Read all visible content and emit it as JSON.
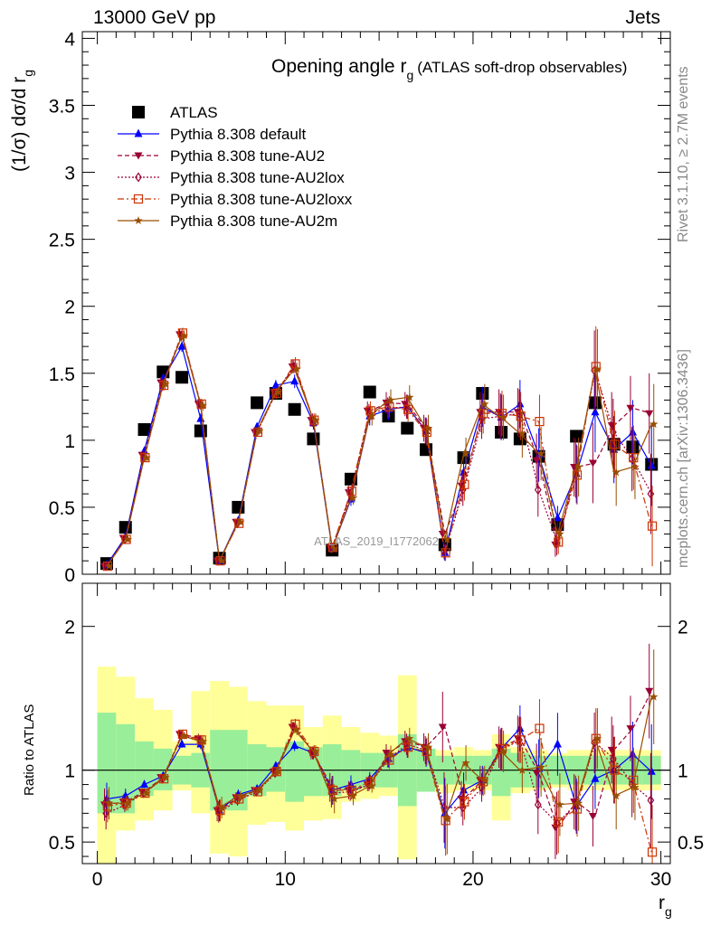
{
  "header": {
    "left": "13000 GeV pp",
    "right": "Jets"
  },
  "side": {
    "rivet": "Rivet 3.1.10, ≥ 2.7M events",
    "mcplots": "mcplots.cern.ch [arXiv:1306.3436]"
  },
  "watermark": "ATLAS_2019_I1772062",
  "chart_data": [
    {
      "type": "line",
      "title": "Opening angle r",
      "title_sub": "g",
      "title_suffix": "(ATLAS soft-drop observables)",
      "ylabel": "(1/σ) dσ/d r",
      "ylabel_sub": "g",
      "xlim": [
        -0.8,
        30.5
      ],
      "ylim": [
        0,
        4.05
      ],
      "y_ticks": [
        "0",
        "0.5",
        "1",
        "1.5",
        "2",
        "2.5",
        "3",
        "3.5",
        "4"
      ],
      "legend_position": "top-left",
      "x": [
        0.5,
        1.5,
        2.5,
        3.5,
        4.5,
        5.5,
        6.5,
        7.5,
        8.5,
        9.5,
        10.5,
        11.5,
        12.5,
        13.5,
        14.5,
        15.5,
        16.5,
        17.5,
        18.5,
        19.5,
        20.5,
        21.5,
        22.5,
        23.5,
        24.5,
        25.5,
        26.5,
        27.5,
        28.5,
        29.5
      ],
      "series": [
        {
          "name": "ATLAS",
          "color": "#000000",
          "marker": "square",
          "line": "none",
          "values": [
            0.08,
            0.35,
            1.08,
            1.51,
            1.47,
            1.07,
            0.12,
            0.5,
            1.28,
            1.35,
            1.23,
            1.01,
            0.18,
            0.71,
            1.36,
            1.18,
            1.09,
            0.93,
            0.22,
            0.87,
            1.35,
            1.06,
            1.01,
            0.88,
            0.37,
            1.03,
            1.28,
            0.97,
            0.95,
            0.82
          ]
        },
        {
          "name": "Pythia 8.308 default",
          "color": "#0000ff",
          "marker": "triangle-up",
          "line": "solid",
          "values": [
            0.07,
            0.28,
            0.92,
            1.46,
            1.7,
            1.16,
            0.1,
            0.4,
            1.1,
            1.41,
            1.44,
            1.13,
            0.19,
            0.56,
            1.18,
            1.23,
            1.25,
            1.07,
            0.16,
            0.76,
            1.25,
            1.17,
            1.27,
            0.89,
            0.42,
            0.75,
            1.21,
            0.93,
            1.06,
            0.81
          ]
        },
        {
          "name": "Pythia 8.308 tune-AU2",
          "color": "#990033",
          "marker": "triangle-down",
          "line": "dashed",
          "values": [
            0.06,
            0.27,
            0.89,
            1.43,
            1.79,
            1.27,
            0.1,
            0.39,
            1.06,
            1.36,
            1.55,
            1.15,
            0.2,
            0.61,
            1.22,
            1.28,
            1.27,
            1.09,
            0.3,
            0.66,
            1.21,
            1.21,
            1.21,
            0.85,
            0.22,
            0.8,
            0.83,
            1.11,
            1.24,
            1.2
          ]
        },
        {
          "name": "Pythia 8.308 tune-AU2lox",
          "color": "#990033",
          "marker": "diamond-open",
          "line": "dotted",
          "values": [
            0.06,
            0.26,
            0.87,
            1.41,
            1.78,
            1.27,
            0.1,
            0.38,
            1.06,
            1.35,
            1.55,
            1.15,
            0.19,
            0.6,
            1.2,
            1.24,
            1.25,
            1.07,
            0.17,
            0.63,
            1.16,
            1.18,
            1.2,
            0.63,
            0.23,
            0.79,
            1.52,
            1.06,
            0.86,
            0.6
          ]
        },
        {
          "name": "Pythia 8.308 tune-AU2loxx",
          "color": "#cc3300",
          "marker": "square-open",
          "line": "dashdot",
          "values": [
            0.06,
            0.26,
            0.87,
            1.41,
            1.8,
            1.27,
            0.1,
            0.38,
            1.06,
            1.35,
            1.57,
            1.15,
            0.2,
            0.62,
            1.22,
            1.25,
            1.23,
            1.06,
            0.16,
            0.67,
            1.2,
            1.2,
            1.18,
            1.14,
            0.24,
            0.74,
            1.55,
            0.97,
            0.87,
            0.36
          ]
        },
        {
          "name": "Pythia 8.308 tune-AU2m",
          "color": "#994d00",
          "marker": "star",
          "line": "solid",
          "values": [
            0.06,
            0.26,
            0.87,
            1.42,
            1.78,
            1.26,
            0.1,
            0.39,
            1.07,
            1.36,
            1.53,
            1.15,
            0.19,
            0.57,
            1.18,
            1.3,
            1.32,
            1.09,
            0.26,
            0.9,
            1.27,
            1.17,
            1.05,
            0.9,
            0.3,
            0.8,
            1.53,
            0.76,
            0.8,
            1.12
          ]
        }
      ],
      "mc_error": [
        0.01,
        0.02,
        0.03,
        0.04,
        0.04,
        0.04,
        0.01,
        0.02,
        0.03,
        0.04,
        0.05,
        0.05,
        0.02,
        0.05,
        0.07,
        0.08,
        0.09,
        0.1,
        0.06,
        0.12,
        0.15,
        0.17,
        0.18,
        0.2,
        0.09,
        0.22,
        0.3,
        0.25,
        0.24,
        0.3
      ]
    },
    {
      "type": "line",
      "ylabel": "Ratio to ATLAS",
      "xlabel": "r",
      "xlabel_sub": "g",
      "ylim": [
        0.35,
        2.3
      ],
      "y_ticks": [
        "0.5",
        "1",
        "2"
      ],
      "x_ticks": [
        "0",
        "10",
        "20",
        "30"
      ],
      "reference": 1,
      "uncertainty_bands": {
        "inner_color": "#99ee99",
        "outer_color": "#ffff99",
        "inner": [
          [
            0.7,
            1.4
          ],
          [
            0.7,
            1.32
          ],
          [
            0.82,
            1.2
          ],
          [
            0.86,
            1.15
          ],
          [
            0.9,
            1.1
          ],
          [
            0.88,
            1.12
          ],
          [
            0.72,
            1.28
          ],
          [
            0.72,
            1.28
          ],
          [
            0.82,
            1.18
          ],
          [
            0.85,
            1.16
          ],
          [
            0.78,
            1.2
          ],
          [
            0.82,
            1.16
          ],
          [
            0.82,
            1.18
          ],
          [
            0.86,
            1.14
          ],
          [
            0.88,
            1.12
          ],
          [
            0.88,
            1.12
          ],
          [
            0.75,
            1.25
          ],
          [
            0.85,
            1.15
          ],
          [
            0.9,
            1.1
          ],
          [
            0.9,
            1.1
          ],
          [
            0.9,
            1.1
          ],
          [
            0.82,
            1.15
          ],
          [
            0.88,
            1.12
          ],
          [
            0.88,
            1.1
          ],
          [
            0.9,
            1.1
          ],
          [
            0.9,
            1.1
          ],
          [
            0.9,
            1.1
          ],
          [
            0.9,
            1.1
          ],
          [
            0.9,
            1.1
          ],
          [
            0.9,
            1.1
          ]
        ],
        "outer": [
          [
            0.35,
            1.72
          ],
          [
            0.58,
            1.65
          ],
          [
            0.65,
            1.5
          ],
          [
            0.72,
            1.42
          ],
          [
            0.86,
            1.2
          ],
          [
            0.7,
            1.55
          ],
          [
            0.42,
            1.62
          ],
          [
            0.4,
            1.58
          ],
          [
            0.62,
            1.48
          ],
          [
            0.64,
            1.45
          ],
          [
            0.58,
            1.45
          ],
          [
            0.65,
            1.3
          ],
          [
            0.66,
            1.38
          ],
          [
            0.78,
            1.3
          ],
          [
            0.8,
            1.26
          ],
          [
            0.82,
            1.24
          ],
          [
            0.38,
            1.66
          ],
          [
            0.86,
            1.14
          ],
          [
            0.84,
            1.14
          ],
          [
            0.86,
            1.16
          ],
          [
            0.86,
            1.14
          ],
          [
            0.65,
            1.25
          ],
          [
            0.84,
            1.16
          ],
          [
            0.86,
            1.14
          ],
          [
            0.88,
            1.12
          ],
          [
            0.86,
            1.14
          ],
          [
            0.86,
            1.14
          ],
          [
            0.86,
            1.14
          ],
          [
            0.86,
            1.14
          ],
          [
            0.86,
            1.14
          ]
        ]
      },
      "series": [
        {
          "name": "Pythia 8.308 default",
          "values": [
            0.8,
            0.82,
            0.9,
            0.96,
            1.18,
            1.18,
            0.72,
            0.83,
            0.87,
            1.03,
            1.17,
            1.12,
            0.86,
            0.9,
            0.94,
            1.08,
            1.16,
            1.12,
            0.7,
            0.86,
            0.93,
            1.15,
            1.29,
            1.01,
            1.18,
            0.75,
            0.94,
            1.0,
            1.11,
            0.99
          ]
        },
        {
          "name": "Pythia 8.308 tune-AU2",
          "values": [
            0.76,
            0.78,
            0.85,
            0.95,
            1.25,
            1.22,
            0.72,
            0.81,
            0.86,
            0.99,
            1.3,
            1.12,
            0.88,
            0.86,
            0.9,
            1.12,
            1.2,
            1.16,
            1.3,
            0.8,
            0.93,
            1.16,
            1.22,
            0.98,
            0.6,
            0.78,
            0.68,
            1.14,
            1.29,
            1.55
          ]
        },
        {
          "name": "Pythia 8.308 tune-AU2lox",
          "values": [
            0.7,
            0.76,
            0.84,
            0.94,
            1.24,
            1.21,
            0.71,
            0.79,
            0.85,
            0.98,
            1.3,
            1.12,
            0.84,
            0.85,
            0.9,
            1.08,
            1.18,
            1.14,
            0.74,
            0.74,
            0.88,
            1.14,
            1.21,
            0.76,
            0.63,
            0.77,
            1.19,
            1.08,
            0.9,
            0.79
          ]
        },
        {
          "name": "Pythia 8.308 tune-AU2loxx",
          "values": [
            0.75,
            0.77,
            0.84,
            0.94,
            1.25,
            1.21,
            0.72,
            0.8,
            0.85,
            0.99,
            1.32,
            1.13,
            0.86,
            0.86,
            0.92,
            1.07,
            1.16,
            1.13,
            0.65,
            0.78,
            0.92,
            1.15,
            1.21,
            1.29,
            0.64,
            0.73,
            1.22,
            1.0,
            0.93,
            0.43
          ]
        },
        {
          "name": "Pythia 8.308 tune-AU2m",
          "values": [
            0.77,
            0.77,
            0.84,
            0.95,
            1.24,
            1.2,
            0.74,
            0.82,
            0.86,
            0.99,
            1.28,
            1.13,
            0.8,
            0.82,
            0.89,
            1.11,
            1.22,
            1.16,
            0.66,
            1.05,
            0.93,
            1.13,
            1.0,
            1.02,
            0.76,
            0.77,
            1.22,
            0.82,
            0.88,
            1.51
          ]
        }
      ]
    }
  ]
}
